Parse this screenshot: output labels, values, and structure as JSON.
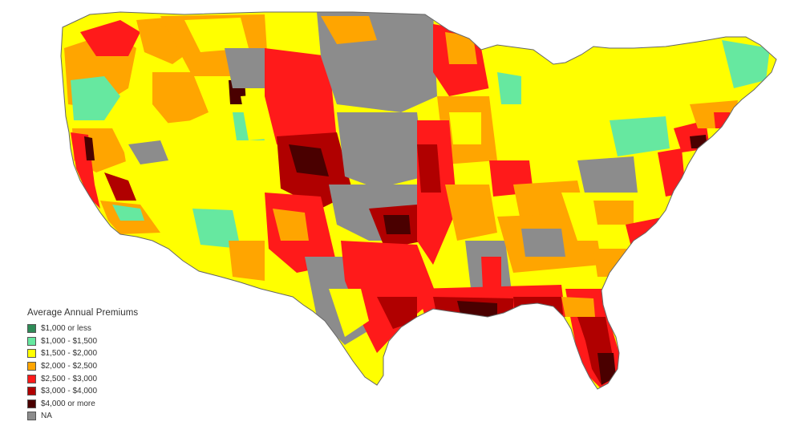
{
  "map": {
    "title": "",
    "region": "contiguous-united-states",
    "unit_granularity": "county",
    "border_color": "#666666",
    "background": "#ffffff",
    "color_note": "choropleth of average annual premiums"
  },
  "legend": {
    "title": "Average Annual Premiums",
    "items": [
      {
        "label": "$1,000 or less",
        "color": "#2e8b57"
      },
      {
        "label": "$1,000 - $1,500",
        "color": "#66e8a0"
      },
      {
        "label": "$1,500 - $2,000",
        "color": "#ffff00"
      },
      {
        "label": "$2,000 - $2,500",
        "color": "#ffa500"
      },
      {
        "label": "$2,500 - $3,000",
        "color": "#ff1a1a"
      },
      {
        "label": "$3,000 - $4,000",
        "color": "#b00000"
      },
      {
        "label": "$4,000 or more",
        "color": "#4a0000"
      },
      {
        "label": "NA",
        "color": "#8c8c8c"
      }
    ]
  }
}
